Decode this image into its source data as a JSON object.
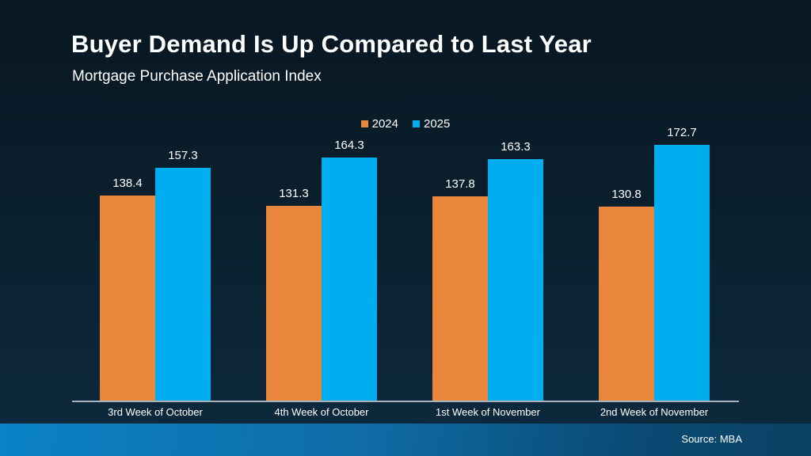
{
  "slide": {
    "title": "Buyer Demand Is Up Compared to Last Year",
    "subtitle": "Mortgage Purchase Application Index",
    "source": "Source: MBA"
  },
  "colors": {
    "background_top": "#081722",
    "background_bottom": "#0d2a3e",
    "series_2024": "#e8873c",
    "series_2025": "#00aeef",
    "axis_line": "#a9b2b9",
    "footer_band_left": "#0a82c6",
    "footer_band_right": "#0a4163",
    "text": "#ffffff"
  },
  "chart_data": {
    "type": "bar",
    "title": "Buyer Demand Is Up Compared to Last Year",
    "subtitle": "Mortgage Purchase Application Index",
    "categories": [
      "3rd Week of October",
      "4th Week of October",
      "1st Week of November",
      "2nd Week of November"
    ],
    "series": [
      {
        "name": "2024",
        "color": "#e8873c",
        "values": [
          138.4,
          131.3,
          137.8,
          130.8
        ]
      },
      {
        "name": "2025",
        "color": "#00aeef",
        "values": [
          157.3,
          164.3,
          163.3,
          172.7
        ]
      }
    ],
    "xlabel": "",
    "ylabel": "Mortgage Purchase Application Index",
    "ylim": [
      0,
      185
    ],
    "grid": false,
    "value_labels": true,
    "legend_position": "top-center",
    "source": "Source: MBA"
  }
}
